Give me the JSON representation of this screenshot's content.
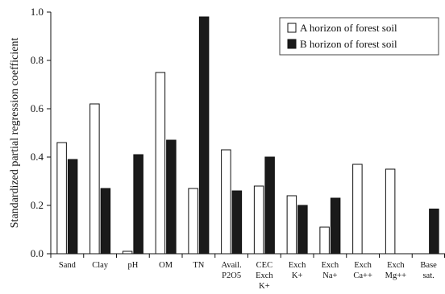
{
  "chart_data": {
    "type": "bar",
    "title": "",
    "xlabel": "",
    "ylabel": "Standardized partial regression coefficient",
    "ylim": [
      0,
      1.0
    ],
    "yticks": [
      "0.0",
      "0.2",
      "0.4",
      "0.6",
      "0.8",
      "1.0"
    ],
    "grid": false,
    "legend_position": "top-right",
    "categories": [
      [
        "Sand"
      ],
      [
        "Clay"
      ],
      [
        "pH"
      ],
      [
        "OM"
      ],
      [
        "TN"
      ],
      [
        "Avail.",
        "P2O5"
      ],
      [
        "CEC",
        "Exch",
        "K+"
      ],
      [
        "Exch",
        "K+"
      ],
      [
        "Exch",
        "Na+"
      ],
      [
        "Exch",
        "Ca++"
      ],
      [
        "Exch",
        "Mg++"
      ],
      [
        "Base",
        "sat."
      ]
    ],
    "series": [
      {
        "name": "A horizon of forest soil",
        "color": "#ffffff",
        "values": [
          0.46,
          0.62,
          0.01,
          0.75,
          0.27,
          0.43,
          0.28,
          0.24,
          0.11,
          0.37,
          0.35,
          null
        ]
      },
      {
        "name": "B horizon of forest soil",
        "color": "#1a1a1a",
        "values": [
          0.39,
          0.27,
          0.41,
          0.47,
          0.98,
          0.26,
          0.4,
          0.2,
          0.23,
          null,
          null,
          0.185
        ]
      }
    ]
  }
}
